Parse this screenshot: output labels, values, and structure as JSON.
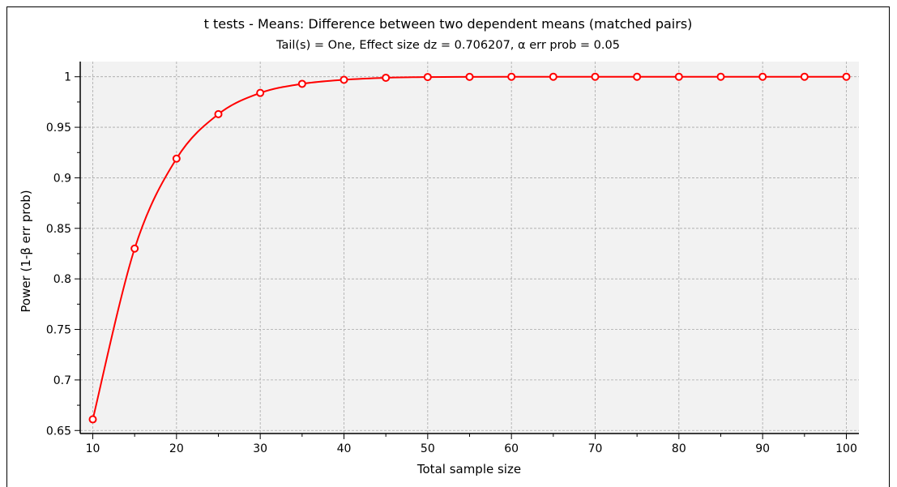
{
  "chart_data": {
    "type": "line",
    "title": "t tests - Means: Difference between two dependent means (matched pairs)",
    "subtitle": "Tail(s) = One, Effect size dz = 0.706207, α err prob = 0.05",
    "xlabel": "Total sample size",
    "ylabel": "Power (1-β err prob)",
    "xlim": [
      8.5,
      101.5
    ],
    "ylim": [
      0.647,
      1.015
    ],
    "xticks": [
      10,
      20,
      30,
      40,
      50,
      60,
      70,
      80,
      90,
      100
    ],
    "xtick_labels": [
      "10",
      "20",
      "30",
      "40",
      "50",
      "60",
      "70",
      "80",
      "90",
      "100"
    ],
    "yticks": [
      0.65,
      0.7,
      0.75,
      0.8,
      0.85,
      0.9,
      0.95,
      1
    ],
    "ytick_labels": [
      "0.65",
      "0.7",
      "0.75",
      "0.8",
      "0.85",
      "0.9",
      "0.95",
      "1"
    ],
    "grid": true,
    "line_color": "#ff0000",
    "plot_background": "#f2f2f2",
    "series": [
      {
        "x": [
          10,
          15,
          20,
          25,
          30,
          35,
          40,
          45,
          50,
          55,
          60,
          65,
          70,
          75,
          80,
          85,
          90,
          95,
          100
        ],
        "values": [
          0.661,
          0.83,
          0.919,
          0.963,
          0.984,
          0.993,
          0.997,
          0.999,
          0.9997,
          0.9999,
          1,
          1,
          1,
          1,
          1,
          1,
          1,
          1,
          1
        ]
      }
    ]
  }
}
